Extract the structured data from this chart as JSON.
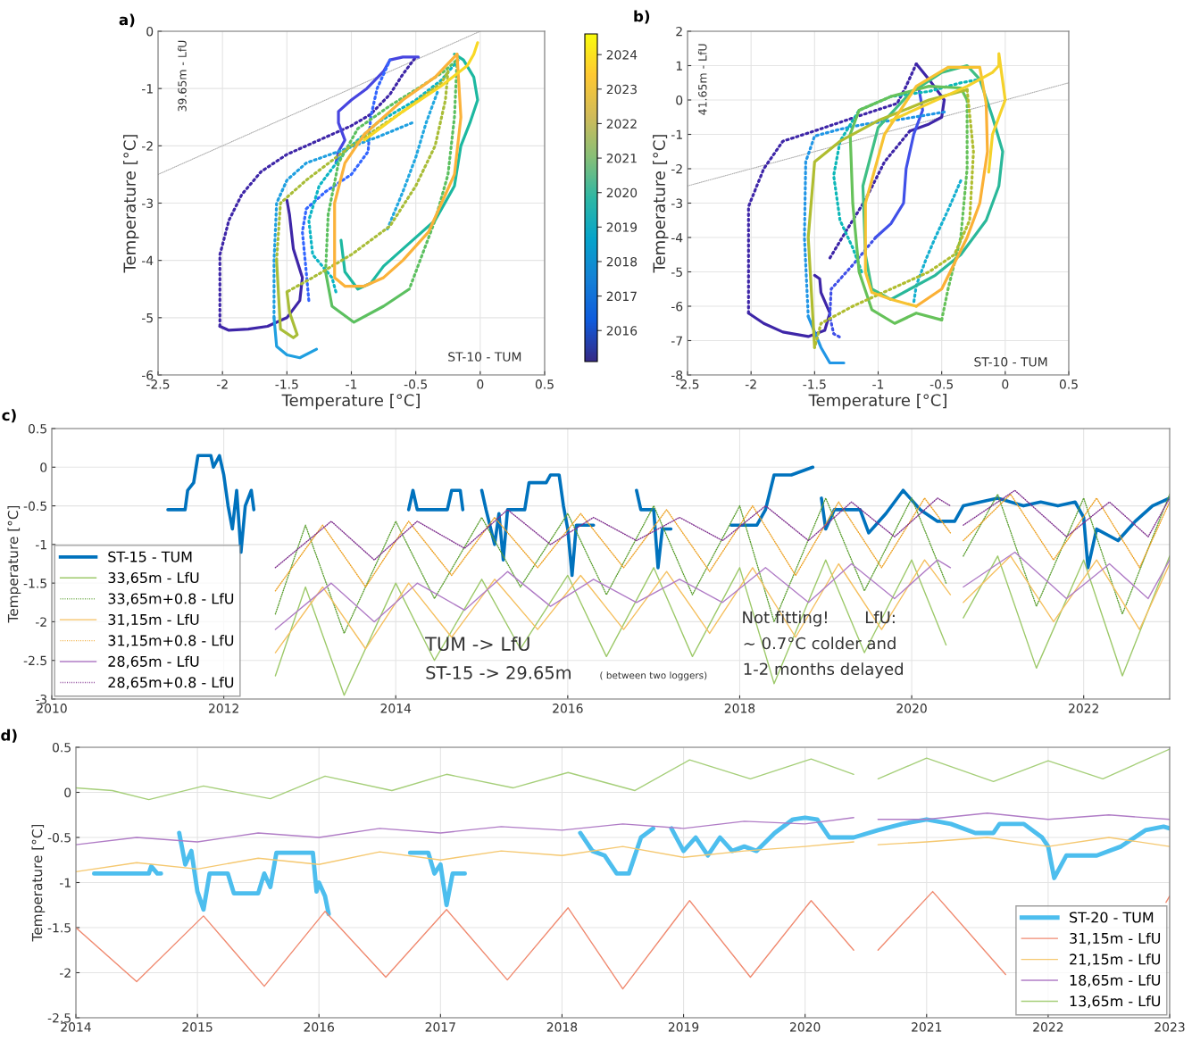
{
  "chart_data": [
    {
      "type": "line",
      "title": "a)",
      "xlabel": "Temperature [°C]",
      "ylabel": "Temperature [°C]",
      "xlim": [
        -2.5,
        0.5
      ],
      "xticks": [
        -2.5,
        -2,
        -1.5,
        -1,
        -0.5,
        0,
        0.5
      ],
      "ylim": [
        -6,
        0
      ],
      "yticks": [
        -6,
        -5,
        -4,
        -3,
        -2,
        -1,
        0
      ],
      "grid": true,
      "clim": [
        2015.1,
        2024.6
      ],
      "cticks": [
        2016,
        2017,
        2018,
        2019,
        2020,
        2021,
        2022,
        2023,
        2024
      ],
      "annotations": [
        "39.65m - LfU",
        "ST-10 - TUM"
      ],
      "series": [
        {
          "color": "#aaaaaa",
          "line_style": "dotted",
          "x": [
            -2.5,
            0
          ],
          "values": [
            -2.5,
            0
          ]
        },
        {
          "color": "#3e26a8",
          "line_style": "dotted",
          "x": [
            -2.02,
            -2.02,
            -1.95,
            -1.85,
            -1.7,
            -1.5,
            -1.2,
            -1.0,
            -0.85,
            -0.7,
            -0.6,
            -0.5
          ],
          "values": [
            -5.15,
            -3.9,
            -3.3,
            -2.85,
            -2.45,
            -2.15,
            -1.85,
            -1.65,
            -1.45,
            -1.1,
            -0.75,
            -0.45
          ]
        },
        {
          "color": "#3e26a8",
          "line_style": "solid",
          "x": [
            -1.5,
            -1.48,
            -1.45,
            -1.38,
            -1.4,
            -1.5,
            -1.65,
            -1.8,
            -1.95,
            -2.02
          ],
          "values": [
            -2.95,
            -3.2,
            -3.8,
            -4.3,
            -4.7,
            -5.0,
            -5.15,
            -5.2,
            -5.22,
            -5.15
          ]
        },
        {
          "color": "#4745e0",
          "line_style": "solid",
          "x": [
            -1.12,
            -1.1,
            -1.05,
            -1.1,
            -1.1,
            -1.0,
            -0.88,
            -0.75,
            -0.7,
            -0.6,
            -0.48
          ],
          "values": [
            -2.3,
            -2.1,
            -1.9,
            -1.6,
            -1.4,
            -1.2,
            -1.0,
            -0.7,
            -0.5,
            -0.45,
            -0.45
          ]
        },
        {
          "color": "#3366ff",
          "line_style": "dotted",
          "x": [
            -1.33,
            -1.35,
            -1.38,
            -1.35,
            -1.2,
            -1.0,
            -0.87,
            -0.85,
            -0.8,
            -0.7
          ],
          "values": [
            -4.7,
            -4.2,
            -3.5,
            -3.1,
            -2.8,
            -2.5,
            -2.1,
            -1.5,
            -1.0,
            -0.5
          ]
        },
        {
          "color": "#1f9fe0",
          "line_style": "dotted",
          "x": [
            -0.53,
            -0.8,
            -1.1,
            -1.35,
            -1.5,
            -1.58,
            -1.6,
            -1.6
          ],
          "values": [
            -1.6,
            -1.85,
            -2.1,
            -2.3,
            -2.6,
            -3.0,
            -4.0,
            -5.0
          ]
        },
        {
          "color": "#1f9fe0",
          "line_style": "solid",
          "x": [
            -1.6,
            -1.58,
            -1.5,
            -1.4,
            -1.27
          ],
          "values": [
            -5.0,
            -5.5,
            -5.65,
            -5.7,
            -5.55
          ]
        },
        {
          "color": "#22a8e0",
          "line_style": "dotted",
          "x": [
            -0.72,
            -0.6,
            -0.5,
            -0.42,
            -0.33
          ],
          "values": [
            -3.45,
            -2.8,
            -2.2,
            -1.6,
            -1.05
          ]
        },
        {
          "color": "#0cb5c5",
          "line_style": "dotted",
          "x": [
            -1.12,
            -1.15,
            -1.3,
            -1.33,
            -1.25,
            -1.05,
            -0.8,
            -0.5,
            -0.3,
            -0.17
          ],
          "values": [
            -4.55,
            -4.3,
            -3.9,
            -3.3,
            -2.7,
            -2.1,
            -1.6,
            -1.2,
            -0.85,
            -0.5
          ]
        },
        {
          "color": "#1cb8a0",
          "line_style": "solid",
          "x": [
            -1.08,
            -1.05,
            -0.95,
            -0.85,
            -0.75,
            -0.55,
            -0.35,
            -0.2,
            -0.15,
            -0.08,
            -0.02,
            -0.05,
            -0.13,
            -0.2
          ],
          "values": [
            -3.65,
            -4.2,
            -4.5,
            -4.4,
            -4.1,
            -3.7,
            -3.3,
            -2.7,
            -2.0,
            -1.6,
            -1.2,
            -0.8,
            -0.5,
            -0.4
          ]
        },
        {
          "color": "#5cc060",
          "line_style": "dotted",
          "x": [
            -0.18,
            -0.2,
            -0.25,
            -0.35,
            -0.45,
            -0.55
          ],
          "values": [
            -0.5,
            -1.5,
            -2.5,
            -3.3,
            -3.9,
            -4.5
          ]
        },
        {
          "color": "#5cc060",
          "line_style": "solid",
          "x": [
            -0.55,
            -0.75,
            -0.98,
            -1.15,
            -1.2
          ],
          "values": [
            -4.5,
            -4.8,
            -5.08,
            -4.8,
            -4.2
          ]
        },
        {
          "color": "#5cc060",
          "line_style": "dotted",
          "x": [
            -1.2,
            -1.18,
            -1.1,
            -0.95,
            -0.7,
            -0.45,
            -0.28,
            -0.18
          ],
          "values": [
            -4.2,
            -3.2,
            -2.3,
            -1.7,
            -1.3,
            -0.95,
            -0.7,
            -0.5
          ]
        },
        {
          "color": "#a9bd38",
          "line_style": "dotted",
          "x": [
            -0.25,
            -0.27,
            -0.35,
            -0.5,
            -0.7,
            -1.0,
            -1.3,
            -1.5
          ],
          "values": [
            -0.7,
            -1.2,
            -2.0,
            -2.7,
            -3.4,
            -3.9,
            -4.3,
            -4.55
          ]
        },
        {
          "color": "#a9bd38",
          "line_style": "solid",
          "x": [
            -1.5,
            -1.48,
            -1.42,
            -1.45,
            -1.55,
            -1.58
          ],
          "values": [
            -4.55,
            -4.9,
            -5.3,
            -5.35,
            -5.2,
            -4.0
          ]
        },
        {
          "color": "#a9bd38",
          "line_style": "dotted",
          "x": [
            -1.58,
            -1.55,
            -1.35,
            -1.0,
            -0.6,
            -0.3,
            -0.25
          ],
          "values": [
            -4.0,
            -3.0,
            -2.6,
            -2.0,
            -1.4,
            -0.9,
            -0.7
          ]
        },
        {
          "color": "#fbb23a",
          "line_style": "solid",
          "x": [
            -0.18,
            -0.15,
            -0.2,
            -0.3,
            -0.4,
            -0.6,
            -0.75,
            -0.9,
            -1.05
          ],
          "values": [
            -0.4,
            -1.5,
            -2.5,
            -3.0,
            -3.5,
            -4.0,
            -4.3,
            -4.45,
            -4.45
          ]
        },
        {
          "color": "#fbb23a",
          "line_style": "solid",
          "x": [
            -1.05,
            -1.13,
            -1.13,
            -1.05,
            -0.9,
            -0.6,
            -0.35,
            -0.18
          ],
          "values": [
            -4.45,
            -4.3,
            -3.0,
            -2.3,
            -1.8,
            -1.2,
            -0.8,
            -0.4
          ]
        },
        {
          "color": "#f9d825",
          "line_style": "solid",
          "x": [
            -0.9,
            -0.6,
            -0.3,
            -0.1,
            -0.05,
            -0.02
          ],
          "values": [
            -1.9,
            -1.4,
            -0.95,
            -0.6,
            -0.4,
            -0.2
          ]
        }
      ]
    },
    {
      "type": "line",
      "title": "b)",
      "xlabel": "Temperature [°C]",
      "ylabel": "Temperature [°C]",
      "xlim": [
        -2.5,
        0.5
      ],
      "xticks": [
        -2.5,
        -2,
        -1.5,
        -1,
        -0.5,
        0,
        0.5
      ],
      "ylim": [
        -8,
        2
      ],
      "yticks": [
        -8,
        -7,
        -6,
        -5,
        -4,
        -3,
        -2,
        -1,
        0,
        1,
        2
      ],
      "grid": true,
      "annotations": [
        "41.65m - LfU",
        "ST-10 - TUM"
      ],
      "series": [
        {
          "color": "#aaaaaa",
          "line_style": "dotted",
          "x": [
            -2.5,
            0.5
          ],
          "values": [
            -2.5,
            0.5
          ]
        },
        {
          "color": "#3e26a8",
          "line_style": "solid",
          "x": [
            -1.5,
            -1.46,
            -1.45,
            -1.38,
            -1.42,
            -1.55,
            -1.75,
            -1.9,
            -2.02
          ],
          "values": [
            -5.1,
            -5.2,
            -5.6,
            -6.2,
            -6.7,
            -6.88,
            -6.75,
            -6.5,
            -6.2
          ]
        },
        {
          "color": "#3e26a8",
          "line_style": "dotted",
          "x": [
            -2.02,
            -2.02,
            -1.9,
            -1.75,
            -1.5,
            -1.1,
            -0.85,
            -0.78,
            -0.7
          ],
          "values": [
            -6.2,
            -3.1,
            -2.0,
            -1.2,
            -0.9,
            -0.4,
            -0.1,
            0.4,
            1.05
          ]
        },
        {
          "color": "#3e26a8",
          "line_style": "solid",
          "x": [
            -0.7,
            -0.6,
            -0.48,
            -0.5,
            -0.6,
            -0.75
          ],
          "values": [
            1.05,
            0.6,
            0.0,
            -0.5,
            -0.7,
            -0.9
          ]
        },
        {
          "color": "#3e26a8",
          "line_style": "dotted",
          "x": [
            -0.75,
            -0.95,
            -1.1,
            -1.25,
            -1.38
          ],
          "values": [
            -0.9,
            -1.8,
            -2.9,
            -3.8,
            -4.6
          ]
        },
        {
          "color": "#4050e8",
          "line_style": "solid",
          "x": [
            -0.68,
            -0.65,
            -0.72,
            -0.78,
            -0.8,
            -0.9,
            -1.02
          ],
          "values": [
            0.35,
            -0.3,
            -1.0,
            -2.0,
            -3.0,
            -3.6,
            -4.0
          ]
        },
        {
          "color": "#4050e8",
          "line_style": "dotted",
          "x": [
            -1.02,
            -1.2,
            -1.37,
            -1.38,
            -1.35,
            -1.3
          ],
          "values": [
            -4.0,
            -4.8,
            -5.5,
            -6.3,
            -6.8,
            -6.9
          ]
        },
        {
          "color": "#2196e6",
          "line_style": "dotted",
          "x": [
            -0.48,
            -0.8,
            -1.1,
            -1.3,
            -1.5,
            -1.57,
            -1.58,
            -1.55
          ],
          "values": [
            -0.35,
            -0.55,
            -0.7,
            -0.85,
            -1.05,
            -1.8,
            -4.0,
            -6.3
          ]
        },
        {
          "color": "#2196e6",
          "line_style": "solid",
          "x": [
            -1.55,
            -1.45,
            -1.38,
            -1.27
          ],
          "values": [
            -6.3,
            -7.2,
            -7.65,
            -7.65
          ]
        },
        {
          "color": "#16b0d0",
          "line_style": "dotted",
          "x": [
            -0.35,
            -0.45,
            -0.55,
            -0.62,
            -0.7,
            -0.72
          ],
          "values": [
            -2.35,
            -3.2,
            -4.0,
            -4.6,
            -5.4,
            -5.9
          ]
        },
        {
          "color": "#0db8b8",
          "line_style": "dotted",
          "x": [
            -1.13,
            -1.2,
            -1.3,
            -1.35,
            -1.3,
            -1.15,
            -0.9,
            -0.6,
            -0.35,
            -0.2
          ],
          "values": [
            -5.0,
            -4.3,
            -3.5,
            -2.2,
            -1.2,
            -0.3,
            0.1,
            0.25,
            0.5,
            0.6
          ]
        },
        {
          "color": "#2ab89a",
          "line_style": "solid",
          "x": [
            -0.2,
            -0.1,
            -0.02,
            -0.05,
            -0.15,
            -0.35,
            -0.55,
            -0.75,
            -0.9
          ],
          "values": [
            0.6,
            -0.5,
            -1.5,
            -2.5,
            -3.5,
            -4.5,
            -5.1,
            -5.5,
            -5.8
          ]
        },
        {
          "color": "#3fbf85",
          "line_style": "solid",
          "x": [
            -0.9,
            -1.05,
            -1.1,
            -1.12,
            -1.0,
            -0.75,
            -0.5,
            -0.3,
            -0.2
          ],
          "values": [
            -5.8,
            -5.5,
            -4.5,
            -2.5,
            -0.8,
            0.2,
            0.8,
            1.0,
            0.6
          ]
        },
        {
          "color": "#66c25a",
          "line_style": "dotted",
          "x": [
            -0.3,
            -0.3,
            -0.35,
            -0.45,
            -0.5
          ],
          "values": [
            0.0,
            -2.0,
            -4.0,
            -5.5,
            -6.4
          ]
        },
        {
          "color": "#66c25a",
          "line_style": "solid",
          "x": [
            -0.5,
            -0.7,
            -0.87,
            -1.05,
            -1.15,
            -1.2,
            -1.22,
            -1.15,
            -0.9,
            -0.6,
            -0.35,
            -0.3
          ],
          "values": [
            -6.4,
            -6.2,
            -6.5,
            -6.1,
            -5.0,
            -3.0,
            -1.0,
            -0.3,
            0.1,
            0.4,
            0.35,
            0.0
          ]
        },
        {
          "color": "#b0bd30",
          "line_style": "dotted",
          "x": [
            -0.3,
            -0.25,
            -0.28,
            -0.4,
            -0.6,
            -0.9,
            -1.2,
            -1.45,
            -1.5
          ],
          "values": [
            0.3,
            -1.5,
            -3.5,
            -4.5,
            -5.0,
            -5.5,
            -6.0,
            -6.5,
            -7.2
          ]
        },
        {
          "color": "#b0bd30",
          "line_style": "solid",
          "x": [
            -1.5,
            -1.55,
            -1.5,
            -1.3,
            -1.0,
            -0.6,
            -0.3
          ],
          "values": [
            -7.2,
            -4.0,
            -1.8,
            -1.2,
            -0.6,
            0.0,
            0.3
          ]
        },
        {
          "color": "#fbb035",
          "line_style": "solid",
          "x": [
            -0.15,
            -0.14,
            -0.2,
            -0.3,
            -0.5,
            -0.7
          ],
          "values": [
            -0.1,
            -1.5,
            -3.0,
            -4.0,
            -5.5,
            -6.0
          ]
        },
        {
          "color": "#f7c232",
          "line_style": "solid",
          "x": [
            -0.7,
            -0.9,
            -1.05,
            -1.1,
            -1.1,
            -0.95,
            -0.7,
            -0.45,
            -0.2,
            -0.15
          ],
          "values": [
            -6.0,
            -5.8,
            -5.6,
            -5.0,
            -3.0,
            -1.0,
            0.4,
            0.95,
            0.95,
            -0.1
          ]
        },
        {
          "color": "#f5d22a",
          "line_style": "solid",
          "x": [
            -0.9,
            -0.6,
            -0.3,
            -0.1,
            -0.05,
            -0.05,
            0.0,
            -0.1,
            -0.13
          ],
          "values": [
            -0.6,
            -0.1,
            0.4,
            0.8,
            1.0,
            1.35,
            0.0,
            -1.0,
            -2.1
          ]
        }
      ]
    },
    {
      "type": "line",
      "title": "c)",
      "ylabel": "Temperature [°C]",
      "xlim": [
        2010,
        2023
      ],
      "xticks": [
        2010,
        2012,
        2014,
        2016,
        2018,
        2020,
        2022
      ],
      "ylim": [
        -3,
        0.5
      ],
      "yticks": [
        -3,
        -2.5,
        -2,
        -1.5,
        -1,
        -0.5,
        0,
        0.5
      ],
      "grid": true,
      "legend": "lower left",
      "annotations": [
        "TUM -> LfU",
        "ST-15 -> 29.65m",
        "( between two loggers)",
        "Not fitting!",
        "LfU:",
        "~ 0.7°C colder and",
        "1-2 months delayed"
      ],
      "series": [
        {
          "name": "ST-15 - TUM",
          "color": "#0072bd",
          "line_style": "solid",
          "x": [
            2011.35,
            2011.55,
            2011.58,
            2011.65,
            2011.7,
            2011.85,
            2011.88,
            2011.95,
            2012.0,
            2012.05,
            2012.1,
            2012.15,
            2012.2,
            2012.25,
            2012.32,
            2012.35,
            2013.0,
            2014.15,
            2014.2,
            2014.25,
            2014.6,
            2014.65,
            2014.75,
            2014.78,
            2014.9,
            2015.0,
            2015.05,
            2015.15,
            2015.2,
            2015.25,
            2015.3,
            2015.5,
            2015.55,
            2015.75,
            2015.8,
            2015.9,
            2015.95,
            2016.0,
            2016.05,
            2016.1,
            2016.3,
            2016.5,
            2016.8,
            2016.85,
            2017.0,
            2017.05,
            2017.1,
            2017.2,
            2017.5,
            2017.9,
            2018.2,
            2018.3,
            2018.4,
            2018.6,
            2018.85,
            2018.88,
            2018.95,
            2019.0,
            2019.1,
            2019.2,
            2019.4,
            2019.5,
            2019.7,
            2019.9,
            2020.1,
            2020.3,
            2020.5,
            2020.6,
            2020.8,
            2021.0,
            2021.3,
            2021.5,
            2021.7,
            2021.9,
            2022.0,
            2022.05,
            2022.15,
            2022.4,
            2022.6,
            2022.8,
            2023.0
          ],
          "values": [
            -0.55,
            -0.55,
            -0.3,
            -0.2,
            0.15,
            0.15,
            0.0,
            0.15,
            -0.1,
            -0.5,
            -0.8,
            -0.3,
            -1.1,
            -0.5,
            -0.3,
            -0.55,
            null,
            -0.55,
            -0.3,
            -0.55,
            -0.55,
            -0.3,
            -0.3,
            -0.55,
            null,
            -0.3,
            -0.55,
            -1.0,
            -0.6,
            -1.2,
            -0.55,
            -0.55,
            -0.2,
            -0.2,
            -0.1,
            -0.1,
            -0.5,
            -0.8,
            -1.4,
            -0.75,
            -0.75,
            null,
            -0.3,
            -0.55,
            -0.55,
            -1.3,
            -0.8,
            -0.8,
            null,
            -0.75,
            -0.75,
            -0.55,
            -0.1,
            -0.1,
            0.0,
            null,
            -0.4,
            -0.8,
            -0.55,
            -0.55,
            -0.55,
            -0.85,
            -0.6,
            -0.3,
            -0.55,
            -0.7,
            -0.7,
            -0.5,
            -0.45,
            -0.4,
            -0.5,
            -0.45,
            -0.5,
            -0.45,
            -0.65,
            -1.3,
            -0.8,
            -0.95,
            -0.7,
            -0.5,
            -0.4
          ]
        },
        {
          "name": "33,65m - LfU",
          "color": "#9dc96a",
          "line_style": "solid",
          "x": [
            2012.6,
            2012.95,
            2013.4,
            2014.0,
            2014.45,
            2015.0,
            2015.45,
            2016.0,
            2016.45,
            2017.0,
            2017.45,
            2018.0,
            2018.4,
            2019.0,
            2019.45,
            2020.0,
            2020.4,
            2020.5,
            2020.6,
            2021.0,
            2021.45,
            2022.0,
            2022.45,
            2023.0
          ],
          "values": [
            -2.7,
            -1.55,
            -2.95,
            -1.5,
            -2.5,
            -1.45,
            -2.35,
            -1.4,
            -2.45,
            -1.3,
            -2.45,
            -1.3,
            -2.8,
            -1.2,
            -2.4,
            -1.2,
            -2.3,
            null,
            -1.95,
            -1.15,
            -2.6,
            -1.2,
            -2.7,
            -1.15
          ]
        },
        {
          "name": "33,65m+0.8 - LfU",
          "color": "#5a9e2f",
          "line_style": "dotted",
          "x": [
            2012.6,
            2012.95,
            2013.4,
            2014.0,
            2014.45,
            2015.0,
            2015.45,
            2016.0,
            2016.45,
            2017.0,
            2017.45,
            2018.0,
            2018.4,
            2019.0,
            2019.45,
            2020.0,
            2020.4,
            2020.5,
            2020.6,
            2021.0,
            2021.45,
            2022.0,
            2022.45,
            2023.0
          ],
          "values": [
            -1.9,
            -0.75,
            -2.15,
            -0.7,
            -1.7,
            -0.65,
            -1.55,
            -0.6,
            -1.65,
            -0.5,
            -1.65,
            -0.5,
            -2.0,
            -0.4,
            -1.6,
            -0.4,
            -1.5,
            null,
            -1.15,
            -0.35,
            -1.8,
            -0.4,
            -1.9,
            -0.35
          ]
        },
        {
          "name": "31,15m - LfU",
          "color": "#f5c060",
          "line_style": "solid",
          "x": [
            2012.6,
            2013.15,
            2013.65,
            2014.15,
            2014.65,
            2015.15,
            2015.65,
            2016.15,
            2016.65,
            2017.15,
            2017.65,
            2018.15,
            2018.65,
            2019.15,
            2019.65,
            2020.15,
            2020.45,
            2020.5,
            2020.6,
            2021.15,
            2021.65,
            2022.15,
            2022.65,
            2023.0
          ],
          "values": [
            -2.4,
            -1.55,
            -2.35,
            -1.5,
            -2.2,
            -1.45,
            -2.1,
            -1.4,
            -2.1,
            -1.35,
            -2.15,
            -1.3,
            -2.2,
            -1.25,
            -2.1,
            -1.2,
            -1.65,
            null,
            -1.75,
            -1.15,
            -2.0,
            -1.2,
            -2.1,
            -1.25
          ]
        },
        {
          "name": "31,15m+0.8 - LfU",
          "color": "#eda020",
          "line_style": "dotted",
          "x": [
            2012.6,
            2013.15,
            2013.65,
            2014.15,
            2014.65,
            2015.15,
            2015.65,
            2016.15,
            2016.65,
            2017.15,
            2017.65,
            2018.15,
            2018.65,
            2019.15,
            2019.65,
            2020.15,
            2020.45,
            2020.5,
            2020.6,
            2021.15,
            2021.65,
            2022.15,
            2022.65,
            2023.0
          ],
          "values": [
            -1.6,
            -0.75,
            -1.55,
            -0.7,
            -1.4,
            -0.65,
            -1.3,
            -0.6,
            -1.3,
            -0.55,
            -1.35,
            -0.5,
            -1.4,
            -0.45,
            -1.3,
            -0.4,
            -0.85,
            null,
            -0.95,
            -0.35,
            -1.2,
            -0.4,
            -1.3,
            -0.45
          ]
        },
        {
          "name": "28,65m - LfU",
          "color": "#b07cc6",
          "line_style": "solid",
          "x": [
            2012.6,
            2013.25,
            2013.75,
            2014.25,
            2014.8,
            2015.3,
            2015.8,
            2016.3,
            2016.8,
            2017.3,
            2017.8,
            2018.3,
            2018.8,
            2019.3,
            2019.8,
            2020.3,
            2020.45,
            2020.5,
            2020.6,
            2021.2,
            2021.8,
            2022.3,
            2022.75,
            2023.0
          ],
          "values": [
            -2.1,
            -1.5,
            -2.0,
            -1.5,
            -1.85,
            -1.35,
            -1.8,
            -1.45,
            -1.75,
            -1.45,
            -1.75,
            -1.3,
            -1.75,
            -1.25,
            -1.7,
            -1.2,
            -1.3,
            null,
            -1.55,
            -1.1,
            -1.7,
            -1.25,
            -1.7,
            -1.2
          ]
        },
        {
          "name": "28,65m+0.8 - LfU",
          "color": "#7e2f8e",
          "line_style": "dotted",
          "x": [
            2012.6,
            2013.25,
            2013.75,
            2014.25,
            2014.8,
            2015.3,
            2015.8,
            2016.3,
            2016.8,
            2017.3,
            2017.8,
            2018.3,
            2018.8,
            2019.3,
            2019.8,
            2020.3,
            2020.45,
            2020.5,
            2020.6,
            2021.2,
            2021.8,
            2022.3,
            2022.75,
            2023.0
          ],
          "values": [
            -1.3,
            -0.7,
            -1.2,
            -0.7,
            -1.05,
            -0.55,
            -1.0,
            -0.65,
            -0.95,
            -0.65,
            -0.95,
            -0.5,
            -0.95,
            -0.45,
            -0.9,
            -0.4,
            -0.5,
            null,
            -0.75,
            -0.3,
            -0.9,
            -0.45,
            -0.9,
            -0.4
          ]
        }
      ]
    },
    {
      "type": "line",
      "title": "d)",
      "ylabel": "Temperature [°C]",
      "xlim": [
        2014,
        2023
      ],
      "xticks": [
        2014,
        2015,
        2016,
        2017,
        2018,
        2019,
        2020,
        2021,
        2022,
        2023
      ],
      "ylim": [
        -2.5,
        0.5
      ],
      "yticks": [
        -2.5,
        -2,
        -1.5,
        -1,
        -0.5,
        0,
        0.5
      ],
      "grid": true,
      "legend": "lower right",
      "series": [
        {
          "name": "ST-20 - TUM",
          "color": "#4dbeee",
          "line_style": "solid",
          "x": [
            2014.15,
            2014.6,
            2014.62,
            2014.67,
            2014.7,
            2014.8,
            2014.85,
            2014.9,
            2014.95,
            2015.0,
            2015.05,
            2015.1,
            2015.25,
            2015.3,
            2015.5,
            2015.55,
            2015.6,
            2015.65,
            2015.8,
            2015.95,
            2015.98,
            2016.0,
            2016.05,
            2016.08,
            2016.5,
            2016.75,
            2016.9,
            2016.95,
            2017.0,
            2017.05,
            2017.1,
            2017.2,
            2017.7,
            2018.15,
            2018.25,
            2018.35,
            2018.45,
            2018.55,
            2018.65,
            2018.75,
            2018.8,
            2018.9,
            2019.0,
            2019.1,
            2019.2,
            2019.3,
            2019.4,
            2019.5,
            2019.6,
            2019.75,
            2019.9,
            2020.0,
            2020.1,
            2020.2,
            2020.4,
            2020.6,
            2020.8,
            2021.0,
            2021.2,
            2021.4,
            2021.55,
            2021.6,
            2021.8,
            2021.95,
            2022.0,
            2022.05,
            2022.15,
            2022.4,
            2022.6,
            2022.8,
            2022.95,
            2023.0
          ],
          "values": [
            -0.9,
            -0.9,
            -0.82,
            -0.9,
            -0.9,
            null,
            -0.45,
            -0.8,
            -0.65,
            -1.1,
            -1.3,
            -0.9,
            -0.9,
            -1.12,
            -1.12,
            -0.9,
            -1.05,
            -0.67,
            -0.67,
            -0.67,
            -1.1,
            -1.0,
            -1.15,
            -1.35,
            null,
            -0.67,
            -0.67,
            -0.9,
            -0.8,
            -1.25,
            -0.9,
            -0.9,
            null,
            -0.45,
            -0.65,
            -0.7,
            -0.9,
            -0.9,
            -0.5,
            -0.4,
            null,
            -0.4,
            -0.65,
            -0.5,
            -0.7,
            -0.5,
            -0.65,
            -0.6,
            -0.65,
            -0.45,
            -0.3,
            -0.28,
            -0.3,
            -0.5,
            -0.5,
            -0.42,
            -0.35,
            -0.3,
            -0.35,
            -0.45,
            -0.45,
            -0.35,
            -0.35,
            -0.5,
            -0.6,
            -0.95,
            -0.7,
            -0.7,
            -0.6,
            -0.42,
            -0.38,
            -0.4
          ]
        },
        {
          "name": "31,15m - LfU",
          "color": "#f08a70",
          "line_style": "solid",
          "x": [
            2014.0,
            2014.5,
            2015.05,
            2015.55,
            2016.05,
            2016.55,
            2017.05,
            2017.55,
            2018.05,
            2018.5,
            2019.05,
            2019.55,
            2020.05,
            2020.4,
            2020.5,
            2020.6,
            2021.05,
            2021.65,
            2022.3,
            2022.97,
            2023.0
          ],
          "values": [
            -1.5,
            -2.1,
            -1.37,
            -2.15,
            -1.32,
            -2.05,
            -1.3,
            -2.08,
            -1.28,
            -2.18,
            -1.2,
            -2.05,
            -1.2,
            -1.75,
            null,
            -1.75,
            -1.1,
            -2.02,
            null,
            -1.22,
            -1.15
          ]
        },
        {
          "name": "21,15m - LfU",
          "color": "#f5c870",
          "line_style": "solid",
          "x": [
            2014.0,
            2014.5,
            2015.0,
            2015.5,
            2016.0,
            2016.5,
            2017.0,
            2017.5,
            2018.0,
            2018.5,
            2019.0,
            2019.5,
            2020.0,
            2020.4,
            2020.5,
            2020.6,
            2021.0,
            2021.5,
            2022.0,
            2022.5,
            2023.0
          ],
          "values": [
            -0.88,
            -0.78,
            -0.85,
            -0.73,
            -0.8,
            -0.66,
            -0.75,
            -0.65,
            -0.7,
            -0.6,
            -0.72,
            -0.65,
            -0.6,
            -0.55,
            null,
            -0.58,
            -0.55,
            -0.5,
            -0.6,
            -0.5,
            -0.6
          ]
        },
        {
          "name": "18,65m - LfU",
          "color": "#b07cc6",
          "line_style": "solid",
          "x": [
            2014.0,
            2014.5,
            2015.0,
            2015.5,
            2016.0,
            2016.5,
            2017.0,
            2017.5,
            2018.0,
            2018.5,
            2019.0,
            2019.5,
            2020.0,
            2020.4,
            2020.5,
            2020.6,
            2021.0,
            2021.5,
            2022.0,
            2022.5,
            2023.0
          ],
          "values": [
            -0.58,
            -0.5,
            -0.55,
            -0.45,
            -0.5,
            -0.4,
            -0.45,
            -0.38,
            -0.42,
            -0.35,
            -0.4,
            -0.32,
            -0.35,
            -0.28,
            null,
            -0.3,
            -0.3,
            -0.23,
            -0.3,
            -0.25,
            -0.3
          ]
        },
        {
          "name": "13,65m - LfU",
          "color": "#a6cf7a",
          "line_style": "solid",
          "x": [
            2014.0,
            2014.3,
            2014.6,
            2015.05,
            2015.6,
            2016.05,
            2016.6,
            2017.05,
            2017.6,
            2018.05,
            2018.6,
            2019.05,
            2019.55,
            2020.05,
            2020.4,
            2020.5,
            2020.6,
            2021.0,
            2021.55,
            2022.0,
            2022.45,
            2023.0
          ],
          "values": [
            0.05,
            0.02,
            -0.08,
            0.07,
            -0.07,
            0.18,
            0.02,
            0.2,
            0.05,
            0.22,
            0.02,
            0.36,
            0.15,
            0.37,
            0.2,
            null,
            0.15,
            0.38,
            0.12,
            0.35,
            0.15,
            0.48
          ]
        }
      ]
    }
  ]
}
